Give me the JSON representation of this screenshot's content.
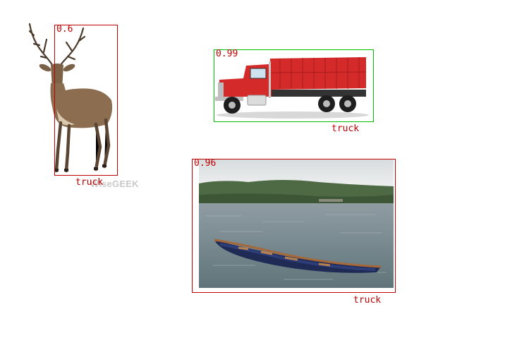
{
  "detections": [
    {
      "id": "deer",
      "score": "0.6",
      "class_label": "truck",
      "box_color": "#c00000"
    },
    {
      "id": "dump-truck",
      "score": "0.99",
      "class_label": "truck",
      "box_color": "#00c000"
    },
    {
      "id": "canoe",
      "score": "0.96",
      "class_label": "truck",
      "box_color": "#c00000"
    }
  ],
  "watermark": "WiseGEEK",
  "label_color": "#c00000"
}
